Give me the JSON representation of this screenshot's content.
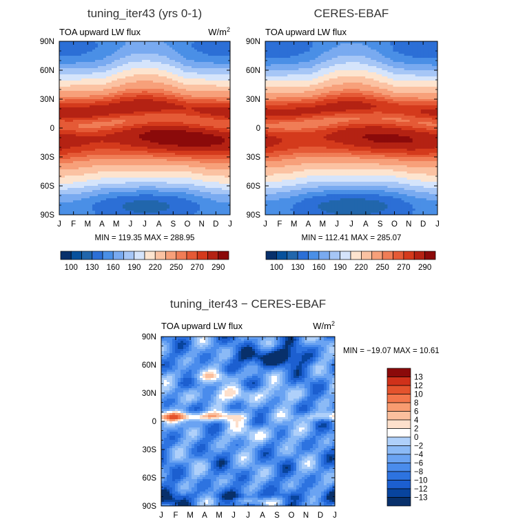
{
  "month_labels": [
    "J",
    "F",
    "M",
    "A",
    "M",
    "J",
    "J",
    "A",
    "S",
    "O",
    "N",
    "D",
    "J"
  ],
  "lat_ticks": [
    {
      "lat": 90,
      "label": "90N"
    },
    {
      "lat": 60,
      "label": "60N"
    },
    {
      "lat": 30,
      "label": "30N"
    },
    {
      "lat": 0,
      "label": "0"
    },
    {
      "lat": -30,
      "label": "30S"
    },
    {
      "lat": -60,
      "label": "60S"
    },
    {
      "lat": -90,
      "label": "90S"
    }
  ],
  "abs_colors": [
    "#08306b",
    "#08519c",
    "#2166ac",
    "#2c6fd6",
    "#4a8fe6",
    "#79aaf0",
    "#a6c6f6",
    "#d5e4fb",
    "#fde4cf",
    "#fbc2a2",
    "#f7a07a",
    "#f07d56",
    "#e55a36",
    "#d43a1c",
    "#b42213",
    "#8b0a0a"
  ],
  "abs_colorbar_labels": [
    "100",
    "130",
    "160",
    "190",
    "220",
    "250",
    "270",
    "290"
  ],
  "diff_colors": [
    "#08306b",
    "#08449e",
    "#1c5fd0",
    "#2d73e0",
    "#4a8cec",
    "#6aa3f2",
    "#8bbaf6",
    "#afd0fa",
    "#ffffff",
    "#fde0cc",
    "#fbbf9d",
    "#f89b70",
    "#f3764b",
    "#e4532d",
    "#d0311a",
    "#8b0a0a"
  ],
  "diff_colorbar_labels": [
    "13",
    "12",
    "10",
    "8",
    "6",
    "4",
    "2",
    "0",
    "−2",
    "−4",
    "−6",
    "−8",
    "−10",
    "−12",
    "−13"
  ],
  "panels": [
    {
      "title": "tuning_iter43 (yrs 0-1)",
      "subtitle": "TOA upward LW flux",
      "units": "W/m",
      "units_exp": "2",
      "stats": "MIN = 119.35  MAX = 288.95",
      "show_units": true
    },
    {
      "title": "CERES-EBAF",
      "subtitle": "TOA upward LW flux",
      "units": "",
      "units_exp": "",
      "stats": "MIN = 112.41  MAX = 285.07",
      "show_units": false
    }
  ],
  "diff_panel": {
    "title": "tuning_iter43 − CERES-EBAF",
    "subtitle": "TOA upward LW flux",
    "units": "W/m",
    "units_exp": "2",
    "stats": "MIN = −19.07  MAX =   10.61"
  },
  "chart_data": [
    {
      "type": "heatmap",
      "title": "tuning_iter43 (yrs 0-1)",
      "variable": "TOA upward LW flux",
      "units": "W/m2",
      "x": [
        "J",
        "F",
        "M",
        "A",
        "M",
        "J",
        "J",
        "A",
        "S",
        "O",
        "N",
        "D",
        "J"
      ],
      "y_range": [
        -90,
        90
      ],
      "min": 119.35,
      "max": 288.95,
      "levels": [
        100,
        130,
        160,
        190,
        220,
        250,
        270,
        290
      ]
    },
    {
      "type": "heatmap",
      "title": "CERES-EBAF",
      "variable": "TOA upward LW flux",
      "units": "W/m2",
      "x": [
        "J",
        "F",
        "M",
        "A",
        "M",
        "J",
        "J",
        "A",
        "S",
        "O",
        "N",
        "D",
        "J"
      ],
      "y_range": [
        -90,
        90
      ],
      "min": 112.41,
      "max": 285.07,
      "levels": [
        100,
        130,
        160,
        190,
        220,
        250,
        270,
        290
      ]
    },
    {
      "type": "heatmap",
      "title": "tuning_iter43 − CERES-EBAF",
      "variable": "TOA upward LW flux",
      "units": "W/m2",
      "x": [
        "J",
        "F",
        "M",
        "A",
        "M",
        "J",
        "J",
        "A",
        "S",
        "O",
        "N",
        "D",
        "J"
      ],
      "y_range": [
        -90,
        90
      ],
      "min": -19.07,
      "max": 10.61,
      "levels": [
        -13,
        -12,
        -10,
        -8,
        -6,
        -4,
        -2,
        0,
        2,
        4,
        6,
        8,
        10,
        12,
        13
      ]
    }
  ]
}
